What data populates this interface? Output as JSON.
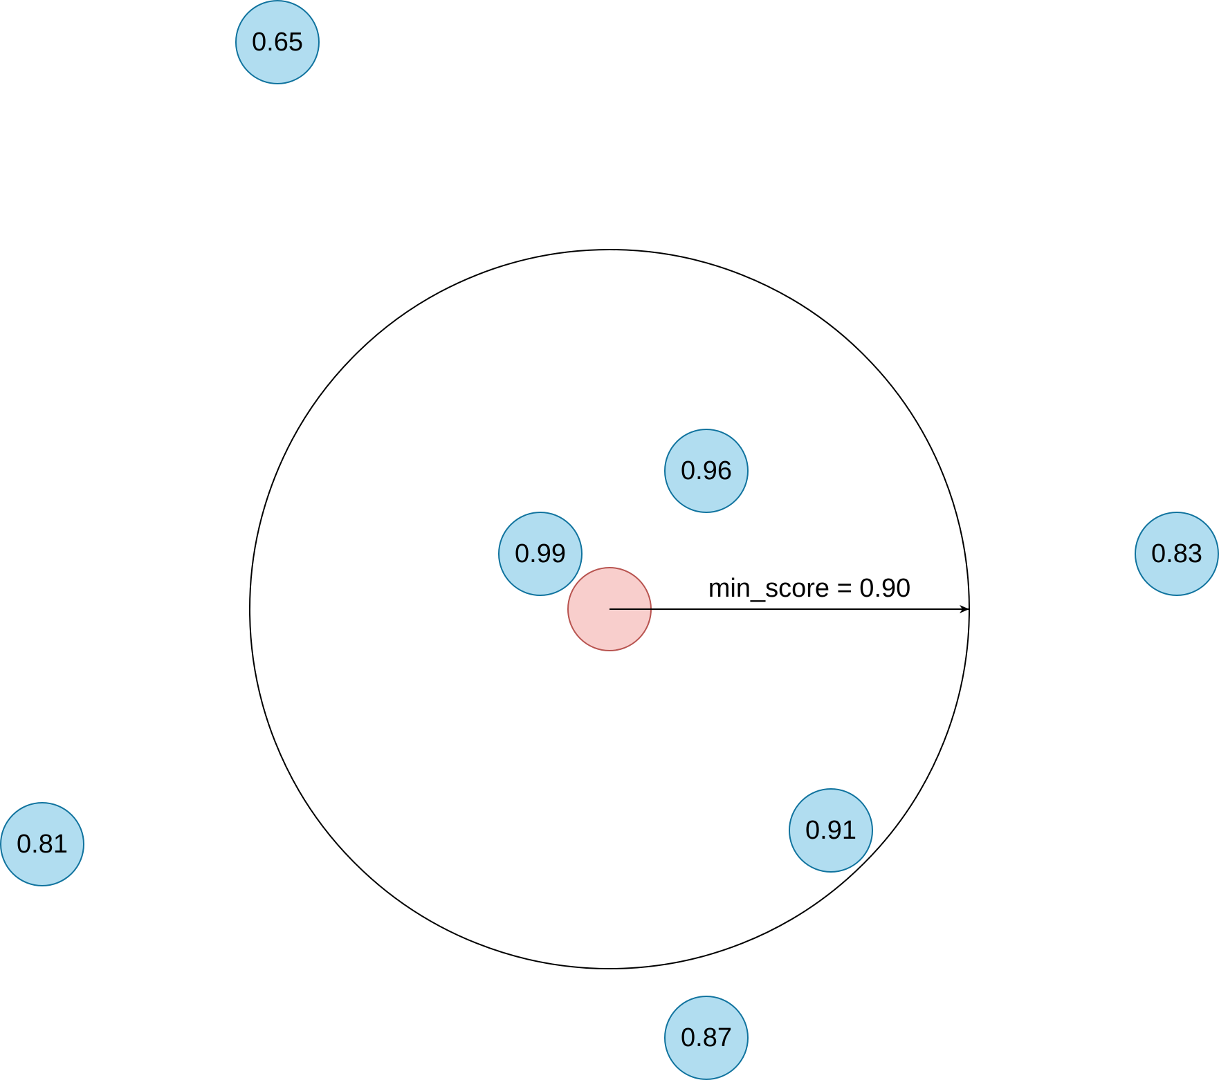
{
  "colors": {
    "node_fill": "#b1ddf0",
    "node_stroke": "#10739e",
    "query_fill": "#f8cecc",
    "query_stroke": "#b85450",
    "boundary_stroke": "#000000",
    "arrow": "#000000"
  },
  "threshold_label": "min_score = 0.90",
  "nodes": [
    {
      "label": "0.65"
    },
    {
      "label": "0.96"
    },
    {
      "label": "0.99"
    },
    {
      "label": "0.83"
    },
    {
      "label": "0.81"
    },
    {
      "label": "0.91"
    },
    {
      "label": "0.87"
    }
  ]
}
